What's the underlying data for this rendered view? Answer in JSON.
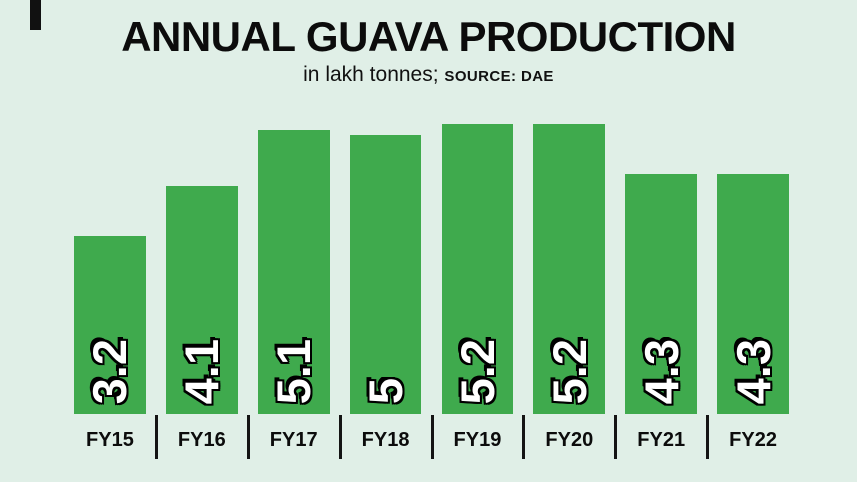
{
  "header": {
    "title": "ANNUAL GUAVA PRODUCTION",
    "subtitle": "in lakh tonnes;",
    "source": "SOURCE: DAE"
  },
  "chart_data": {
    "type": "bar",
    "title": "ANNUAL GUAVA PRODUCTION",
    "subtitle": "in lakh tonnes; SOURCE: DAE",
    "categories": [
      "FY15",
      "FY16",
      "FY17",
      "FY18",
      "FY19",
      "FY20",
      "FY21",
      "FY22"
    ],
    "values": [
      3.2,
      4.1,
      5.1,
      5,
      5.2,
      5.2,
      4.3,
      4.3
    ],
    "xlabel": "",
    "ylabel": "",
    "ylim": [
      0,
      5.6
    ],
    "grid": false,
    "legend": false,
    "value_labels_rotated": true,
    "bar_color": "#3faa4d",
    "background_color": "#e0efe7",
    "value_label_color": "#ffffff",
    "value_label_outline_color": "#000000",
    "axis_label_color": "#0c0c0c"
  }
}
